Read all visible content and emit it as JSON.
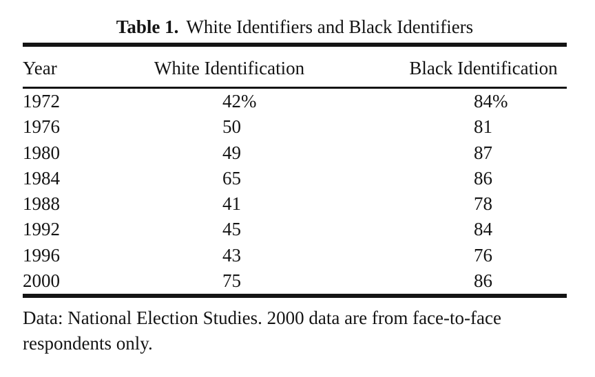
{
  "caption": {
    "label": "Table 1.",
    "text": "White Identifiers and Black Identifiers"
  },
  "table": {
    "columns": [
      "Year",
      "White Identification",
      "Black Identification"
    ],
    "rows": [
      {
        "year": "1972",
        "white": "42%",
        "black": "84%"
      },
      {
        "year": "1976",
        "white": "50",
        "black": "81"
      },
      {
        "year": "1980",
        "white": "49",
        "black": "87"
      },
      {
        "year": "1984",
        "white": "65",
        "black": "86"
      },
      {
        "year": "1988",
        "white": "41",
        "black": "78"
      },
      {
        "year": "1992",
        "white": "45",
        "black": "84"
      },
      {
        "year": "1996",
        "white": "43",
        "black": "76"
      },
      {
        "year": "2000",
        "white": "75",
        "black": "86"
      }
    ]
  },
  "footnote": {
    "line1": "Data: National Election Studies. 2000 data are from face-to-face",
    "line2": "respondents only."
  },
  "colors": {
    "background": "#ffffff",
    "text": "#141414",
    "rule": "#141414"
  }
}
